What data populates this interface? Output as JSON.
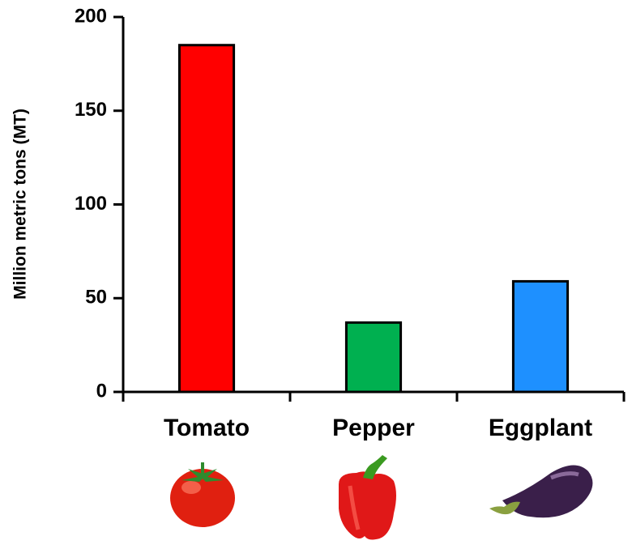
{
  "chart_data": {
    "type": "bar",
    "ylabel": "Million metric tons (MT)",
    "categories": [
      "Tomato",
      "Pepper",
      "Eggplant"
    ],
    "values": [
      185,
      37,
      59
    ],
    "colors": [
      "#ff0000",
      "#00b050",
      "#1e90ff"
    ],
    "ylim": [
      0,
      200
    ],
    "yticks": [
      0,
      50,
      100,
      150,
      200
    ],
    "grid": false
  }
}
